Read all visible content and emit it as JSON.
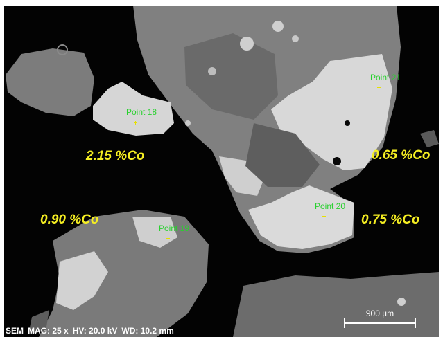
{
  "image": {
    "subject": "SEM backscattered electron micrograph of ore particles",
    "background_color": "#030303",
    "label_color": "#29d12f",
    "marker_color": "#e6e000",
    "annotation_color": "#f5ee22"
  },
  "points": [
    {
      "label": "Point 18"
    },
    {
      "label": "Point 19"
    },
    {
      "label": "Point 20"
    },
    {
      "label": "Point 21"
    }
  ],
  "cobalt_annotations": [
    {
      "text": "2.15 %Co"
    },
    {
      "text": "0.90 %Co"
    },
    {
      "text": "0.65 %Co"
    },
    {
      "text": "0.75 %Co"
    }
  ],
  "info_bar": {
    "instrument": "SEM",
    "magnification": "MAG: 25 x",
    "voltage": "HV: 20.0 kV",
    "working_distance": "WD: 10.2 mm"
  },
  "scale_bar": {
    "label": "900 µm"
  }
}
